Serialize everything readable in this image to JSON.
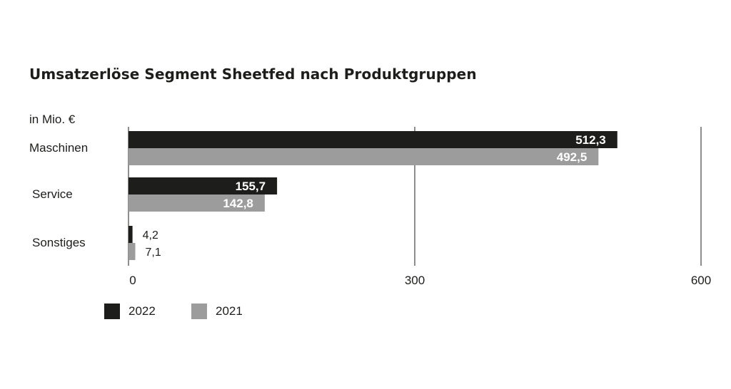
{
  "chart_data": {
    "type": "bar",
    "orientation": "horizontal",
    "title": "Umsatzerlöse Segment Sheetfed nach Produktgruppen",
    "unit_label": "in Mio. €",
    "categories": [
      "Maschinen",
      "Service",
      "Sonstiges"
    ],
    "series": [
      {
        "name": "2022",
        "color": "#1d1d1b",
        "values": [
          512.3,
          155.7,
          4.2
        ],
        "labels": [
          "512,3",
          "155,7",
          "4,2"
        ]
      },
      {
        "name": "2021",
        "color": "#9d9c9c",
        "values": [
          492.5,
          142.8,
          7.1
        ],
        "labels": [
          "492,5",
          "142,8",
          "7,1"
        ]
      }
    ],
    "xlim": [
      0,
      600
    ],
    "x_ticks": [
      0,
      300,
      600
    ],
    "x_tick_labels": [
      "0",
      "300",
      "600"
    ],
    "grid": true,
    "legend_position": "bottom-left"
  }
}
